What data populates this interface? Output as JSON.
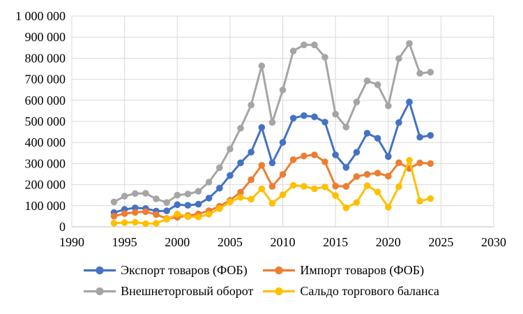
{
  "chart_data": {
    "type": "line",
    "title": "",
    "xlabel": "",
    "ylabel": "",
    "x": [
      1994,
      1995,
      1996,
      1997,
      1998,
      1999,
      2000,
      2001,
      2002,
      2003,
      2004,
      2005,
      2006,
      2007,
      2008,
      2009,
      2010,
      2011,
      2012,
      2013,
      2014,
      2015,
      2016,
      2017,
      2018,
      2019,
      2020,
      2021,
      2022,
      2023,
      2024
    ],
    "series": [
      {
        "id": "export",
        "name": "Экспорт товаров (ФОБ)",
        "color": "#4472C4",
        "values": [
          67379,
          82419,
          89685,
          86895,
          74444,
          75551,
          105033,
          101884,
          107301,
          135929,
          183207,
          243798,
          303550,
          354401,
          471603,
          303388,
          400630,
          515409,
          527434,
          521835,
          496806,
          341419,
          281709,
          353547,
          443914,
          419721,
          333530,
          494350,
          592533,
          425097,
          433907
        ]
      },
      {
        "id": "import",
        "name": "Импорт товаров (ФОБ)",
        "color": "#ED7D31",
        "values": [
          50452,
          62603,
          68092,
          71983,
          58015,
          39537,
          44862,
          53764,
          60966,
          76070,
          97382,
          125434,
          164281,
          223486,
          291861,
          191803,
          248634,
          318555,
          335771,
          341337,
          307875,
          193021,
          191494,
          238384,
          248856,
          254598,
          240380,
          303994,
          277272,
          303371,
          300000
        ]
      },
      {
        "id": "turnover",
        "name": "Внешнеторговый оборот",
        "color": "#A5A5A5",
        "values": [
          117831,
          145022,
          157777,
          158878,
          132459,
          115088,
          149895,
          155648,
          168267,
          211999,
          280589,
          369232,
          467831,
          577887,
          763464,
          495191,
          649264,
          833964,
          863205,
          863172,
          804681,
          534440,
          473203,
          591931,
          692770,
          674319,
          573910,
          798344,
          869805,
          728468,
          733907
        ]
      },
      {
        "id": "balance",
        "name": "Сальдо торгового баланса",
        "color": "#FFC000",
        "values": [
          16927,
          19816,
          21593,
          14912,
          16429,
          36014,
          60171,
          48120,
          46335,
          59859,
          85825,
          118364,
          139269,
          130915,
          179742,
          111585,
          151996,
          196854,
          191663,
          180498,
          188931,
          148398,
          90215,
          115163,
          195058,
          165123,
          93150,
          190356,
          315261,
          121726,
          133907
        ]
      }
    ],
    "xlim": [
      1990,
      2030
    ],
    "ylim": [
      0,
      1000000
    ],
    "x_ticks": [
      1990,
      1995,
      2000,
      2005,
      2010,
      2015,
      2020,
      2025,
      2030
    ],
    "y_ticks": [
      0,
      100000,
      200000,
      300000,
      400000,
      500000,
      600000,
      700000,
      800000,
      900000,
      1000000
    ],
    "y_tick_labels": [
      "0",
      "100 000",
      "200 000",
      "300 000",
      "400 000",
      "500 000",
      "600 000",
      "700 000",
      "800 000",
      "900 000",
      "1 000 000"
    ],
    "x_tick_labels": [
      "1990",
      "1995",
      "2000",
      "2005",
      "2010",
      "2015",
      "2020",
      "2025",
      "2030"
    ],
    "grid": true,
    "gridline_color": "#D9D9D9",
    "axis_line_color": "#BFBFBF",
    "legend_position": "bottom",
    "marker": "circle",
    "background_color": "#FFFFFF",
    "text_color": "#000000"
  }
}
